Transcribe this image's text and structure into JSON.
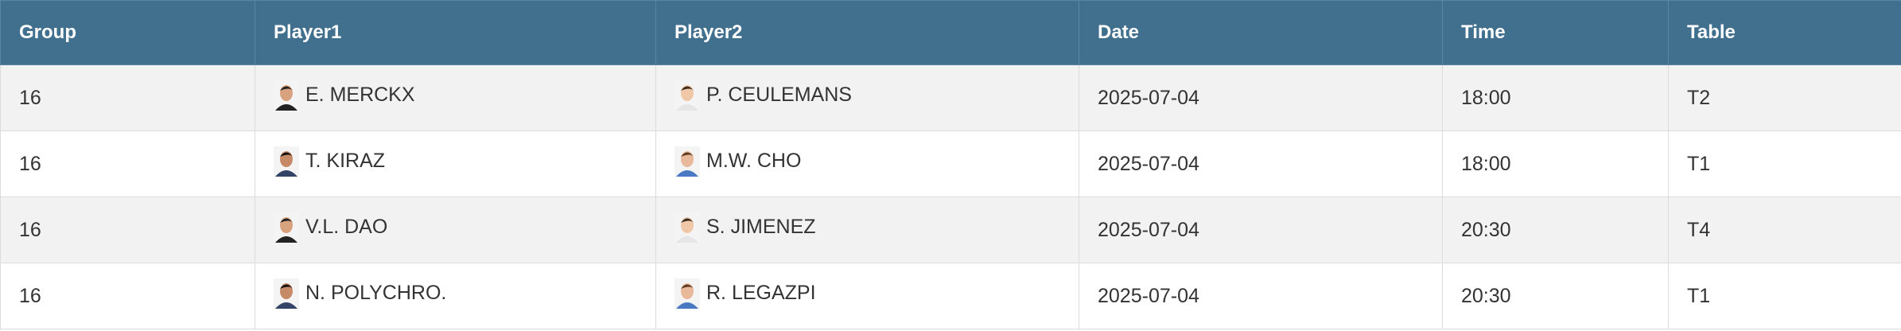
{
  "table": {
    "header": [
      "Group",
      "Player1",
      "Player2",
      "Date",
      "Time",
      "Table"
    ],
    "rows": [
      [
        "16",
        "E. MERCKX",
        "P. CEULEMANS",
        "2025-07-04",
        "18:00",
        "T2"
      ],
      [
        "16",
        "T. KIRAZ",
        "M.W. CHO",
        "2025-07-04",
        "18:00",
        "T1"
      ],
      [
        "16",
        "V.L. DAO",
        "S. JIMENEZ",
        "2025-07-04",
        "20:30",
        "T4"
      ],
      [
        "16",
        "N. POLYCHRO.",
        "R. LEGAZPI",
        "2025-07-04",
        "20:30",
        "T1"
      ]
    ]
  }
}
